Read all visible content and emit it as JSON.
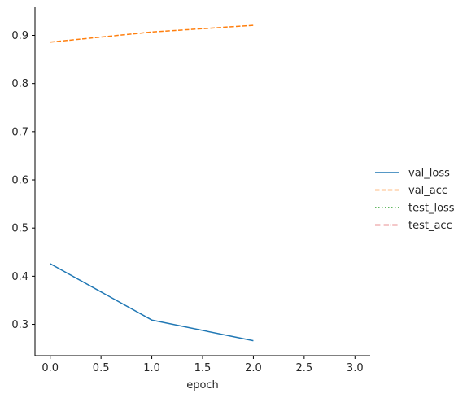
{
  "chart_data": {
    "type": "line",
    "xlabel": "epoch",
    "ylabel": "",
    "xlim": [
      -0.15,
      3.15
    ],
    "ylim": [
      0.235,
      0.96
    ],
    "xticks": [
      0.0,
      0.5,
      1.0,
      1.5,
      2.0,
      2.5,
      3.0
    ],
    "xtick_labels": [
      "0.0",
      "0.5",
      "1.0",
      "1.5",
      "2.0",
      "2.5",
      "3.0"
    ],
    "yticks": [
      0.3,
      0.4,
      0.5,
      0.6,
      0.7,
      0.8,
      0.9
    ],
    "ytick_labels": [
      "0.3",
      "0.4",
      "0.5",
      "0.6",
      "0.7",
      "0.8",
      "0.9"
    ],
    "grid": false,
    "legend_position": "right",
    "series": [
      {
        "name": "val_loss",
        "color": "#1f77b4",
        "linestyle": "solid",
        "x": [
          0,
          1,
          2
        ],
        "values": [
          0.426,
          0.309,
          0.266
        ]
      },
      {
        "name": "val_acc",
        "color": "#ff7f0e",
        "linestyle": "dashed",
        "x": [
          0,
          1,
          2
        ],
        "values": [
          0.886,
          0.907,
          0.921
        ]
      },
      {
        "name": "test_loss",
        "color": "#2ca02c",
        "linestyle": "dotted",
        "x": [],
        "values": []
      },
      {
        "name": "test_acc",
        "color": "#d62728",
        "linestyle": "dashdot",
        "x": [],
        "values": []
      }
    ]
  }
}
